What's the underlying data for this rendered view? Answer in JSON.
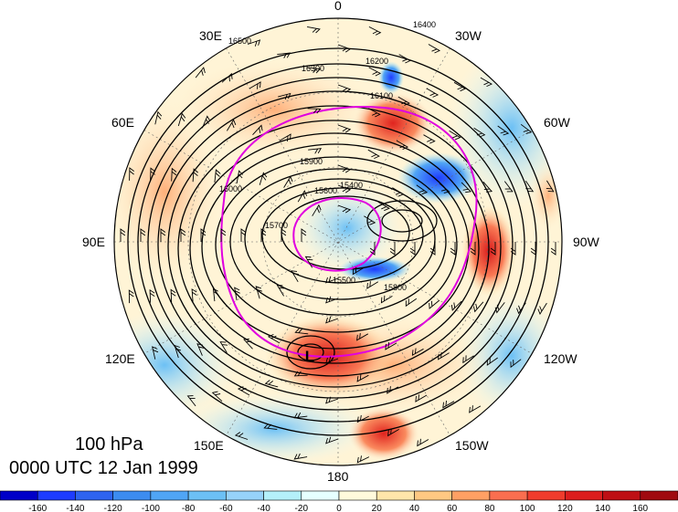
{
  "map": {
    "level_label": "100 hPa",
    "time_label": "0000 UTC 12 Jan 1999",
    "low_marker": "L",
    "longitude_labels": [
      {
        "text": "0",
        "angle": 0
      },
      {
        "text": "30W",
        "angle": 30
      },
      {
        "text": "60W",
        "angle": 60
      },
      {
        "text": "90W",
        "angle": 90
      },
      {
        "text": "120W",
        "angle": 120
      },
      {
        "text": "150W",
        "angle": 150
      },
      {
        "text": "180",
        "angle": 180
      },
      {
        "text": "150E",
        "angle": 210
      },
      {
        "text": "120E",
        "angle": 240
      },
      {
        "text": "90E",
        "angle": 270
      },
      {
        "text": "60E",
        "angle": 300
      },
      {
        "text": "30E",
        "angle": 330
      }
    ],
    "contour_labels": [
      "16400",
      "16500",
      "16300",
      "16200",
      "16100",
      "16000",
      "15900",
      "15800",
      "15700",
      "15600",
      "15500",
      "15400"
    ],
    "colors": {
      "contour": "#000000",
      "highlight_contour": "#e000e0",
      "ocean_fill": "#ffffff"
    }
  },
  "colorbar": {
    "tick_labels": [
      "-160",
      "-140",
      "-120",
      "-100",
      "-80",
      "-60",
      "-40",
      "-20",
      "0",
      "20",
      "40",
      "60",
      "80",
      "100",
      "120",
      "140",
      "160"
    ],
    "colors": [
      "#0000c8",
      "#1e3cff",
      "#2e64f0",
      "#3c8cf0",
      "#50a5f5",
      "#6cc0f5",
      "#96d2fa",
      "#b4f0fa",
      "#e6ffff",
      "#fffadc",
      "#ffe6aa",
      "#ffc882",
      "#ffa064",
      "#fa6e50",
      "#f03c2d",
      "#dc1e1e",
      "#be0f14",
      "#a00a0f"
    ]
  }
}
